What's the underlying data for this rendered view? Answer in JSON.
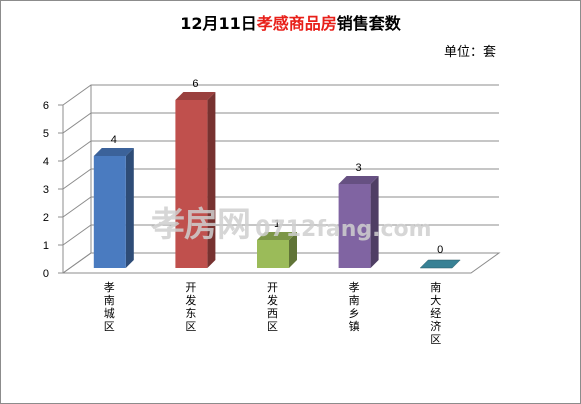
{
  "title": {
    "date_part": "12月11日",
    "highlight_part": "孝感商品房",
    "suffix_part": "销售套数"
  },
  "unit_label": "单位：套",
  "watermark": {
    "brand": "孝房网",
    "url": "0712fang.com"
  },
  "chart_data": {
    "type": "bar",
    "style": "3d-column",
    "title": "12月11日孝感商品房销售套数",
    "unit": "单位：套",
    "categories": [
      "孝南城区",
      "开发东区",
      "开发西区",
      "孝南乡镇",
      "南大经济区"
    ],
    "values": [
      4,
      6,
      1,
      3,
      0
    ],
    "bar_colors": [
      "#4a7bc0",
      "#c0504d",
      "#9bbb59",
      "#8064a2",
      "#4bacc6"
    ],
    "ylim": [
      0,
      6
    ],
    "yticks": [
      0,
      1,
      2,
      3,
      4,
      5,
      6
    ],
    "grid": true,
    "legend": "none"
  }
}
